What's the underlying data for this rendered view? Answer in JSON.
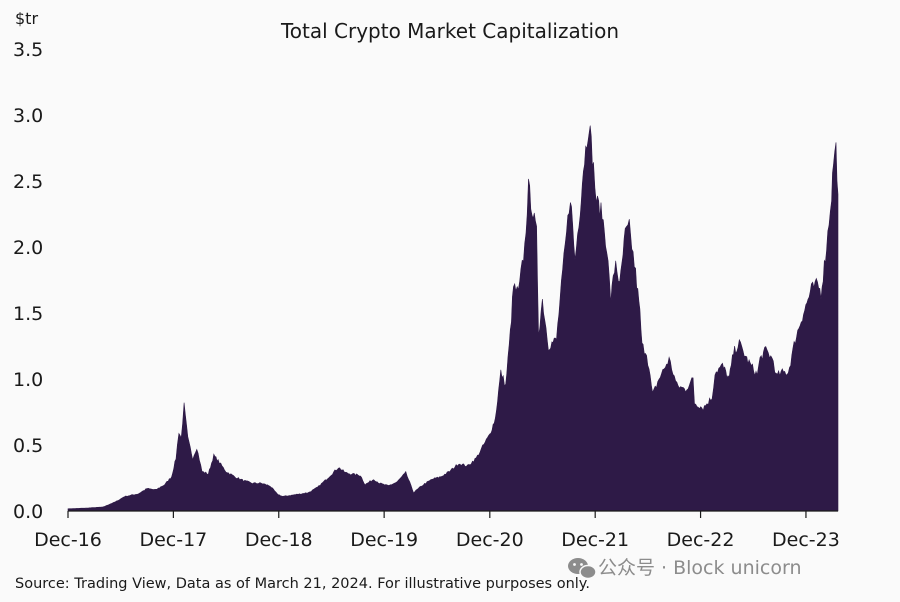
{
  "chart_data": {
    "type": "area",
    "title": "Total Crypto Market Capitalization",
    "unit_label": "$tr",
    "ylim": [
      0,
      3.5
    ],
    "y_ticks": [
      "0.0",
      "0.5",
      "1.0",
      "1.5",
      "2.0",
      "2.5",
      "3.0",
      "3.5"
    ],
    "x_ticks": [
      "Dec-16",
      "Dec-17",
      "Dec-18",
      "Dec-19",
      "Dec-20",
      "Dec-21",
      "Dec-22",
      "Dec-23"
    ],
    "grid": false,
    "legend": "none",
    "fill_color": "#2e1a47",
    "series": [
      {
        "x": [
          "2016-12-01",
          "2017-02-01",
          "2017-04-01",
          "2017-05-15",
          "2017-06-15",
          "2017-08-01",
          "2017-09-01",
          "2017-10-01",
          "2017-11-01",
          "2017-11-25",
          "2017-12-10",
          "2017-12-20",
          "2017-12-28",
          "2018-01-07",
          "2018-01-20",
          "2018-02-06",
          "2018-02-20",
          "2018-03-10",
          "2018-04-01",
          "2018-04-20",
          "2018-05-05",
          "2018-06-01",
          "2018-07-01",
          "2018-08-01",
          "2018-09-01",
          "2018-10-01",
          "2018-11-01",
          "2018-11-25",
          "2018-12-15",
          "2019-01-15",
          "2019-02-15",
          "2019-03-15",
          "2019-04-15",
          "2019-05-15",
          "2019-06-26",
          "2019-07-20",
          "2019-08-10",
          "2019-09-10",
          "2019-09-26",
          "2019-10-26",
          "2019-11-15",
          "2019-12-15",
          "2020-01-15",
          "2020-02-14",
          "2020-03-12",
          "2020-04-15",
          "2020-05-15",
          "2020-06-15",
          "2020-07-15",
          "2020-08-15",
          "2020-09-15",
          "2020-10-15",
          "2020-11-15",
          "2020-12-01",
          "2020-12-20",
          "2021-01-08",
          "2021-01-25",
          "2021-02-10",
          "2021-02-21",
          "2021-03-10",
          "2021-04-01",
          "2021-04-14",
          "2021-05-12",
          "2021-05-19",
          "2021-06-01",
          "2021-06-22",
          "2021-07-20",
          "2021-08-10",
          "2021-09-06",
          "2021-09-22",
          "2021-10-10",
          "2021-10-21",
          "2021-11-10",
          "2021-11-25",
          "2021-12-05",
          "2021-12-25",
          "2022-01-10",
          "2022-01-24",
          "2022-02-10",
          "2022-02-24",
          "2022-03-15",
          "2022-03-29",
          "2022-04-20",
          "2022-05-05",
          "2022-05-12",
          "2022-05-28",
          "2022-06-18",
          "2022-07-10",
          "2022-08-14",
          "2022-09-10",
          "2022-10-10",
          "2022-11-05",
          "2022-11-10",
          "2022-12-10",
          "2023-01-10",
          "2023-01-20",
          "2023-02-15",
          "2023-03-10",
          "2023-03-25",
          "2023-04-14",
          "2023-05-10",
          "2023-06-15",
          "2023-06-25",
          "2023-07-15",
          "2023-08-10",
          "2023-08-20",
          "2023-09-10",
          "2023-10-01",
          "2023-10-25",
          "2023-11-15",
          "2023-12-08",
          "2023-12-20",
          "2024-01-10",
          "2024-01-22",
          "2024-02-10",
          "2024-02-28",
          "2024-03-05",
          "2024-03-14",
          "2024-03-21"
        ],
        "y": [
          0.017,
          0.022,
          0.03,
          0.07,
          0.11,
          0.13,
          0.17,
          0.16,
          0.2,
          0.26,
          0.4,
          0.6,
          0.55,
          0.8,
          0.55,
          0.4,
          0.48,
          0.3,
          0.28,
          0.42,
          0.38,
          0.3,
          0.26,
          0.23,
          0.21,
          0.21,
          0.19,
          0.13,
          0.11,
          0.12,
          0.13,
          0.14,
          0.18,
          0.24,
          0.33,
          0.29,
          0.28,
          0.27,
          0.2,
          0.24,
          0.21,
          0.19,
          0.22,
          0.29,
          0.14,
          0.2,
          0.24,
          0.26,
          0.3,
          0.36,
          0.34,
          0.4,
          0.52,
          0.58,
          0.7,
          1.05,
          0.95,
          1.35,
          1.7,
          1.65,
          2.0,
          2.45,
          2.1,
          1.35,
          1.6,
          1.25,
          1.3,
          1.8,
          2.4,
          1.9,
          2.3,
          2.6,
          2.95,
          2.6,
          2.35,
          2.25,
          2.0,
          1.6,
          1.9,
          1.7,
          2.1,
          2.15,
          1.8,
          1.5,
          1.25,
          1.2,
          0.88,
          1.0,
          1.15,
          0.95,
          0.92,
          1.0,
          0.82,
          0.78,
          0.86,
          1.05,
          1.1,
          1.0,
          1.2,
          1.27,
          1.15,
          1.03,
          1.15,
          1.22,
          1.14,
          1.02,
          1.05,
          1.05,
          1.3,
          1.45,
          1.6,
          1.68,
          1.72,
          1.65,
          2.0,
          2.4,
          2.65,
          2.75,
          2.4
        ]
      }
    ]
  },
  "source_note": "Source: Trading View, Data as of March 21, 2024. For illustrative purposes only.",
  "watermark": "公众号 · Block unicorn"
}
